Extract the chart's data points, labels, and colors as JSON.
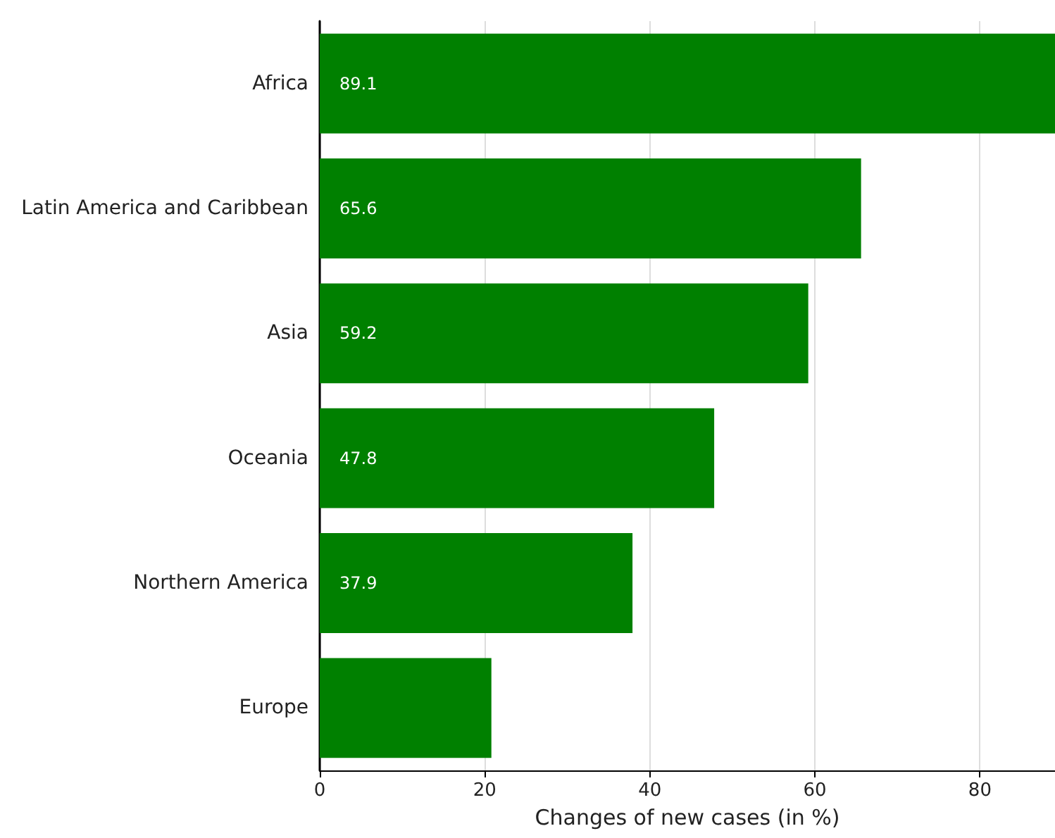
{
  "chart_data": {
    "type": "bar",
    "orientation": "horizontal",
    "xlabel": "Changes of new cases (in %)",
    "categories": [
      "Africa",
      "Latin America and Caribbean",
      "Asia",
      "Oceania",
      "Northern America",
      "Europe"
    ],
    "values": [
      89.1,
      65.6,
      59.2,
      47.8,
      37.9,
      20.8
    ],
    "value_labels": [
      "89.1",
      "65.6",
      "59.2",
      "47.8",
      "37.9",
      null
    ],
    "color": "#008000",
    "xlim": [
      0,
      89.1
    ],
    "xticks": [
      0,
      20,
      40,
      60,
      80
    ],
    "grid": "x"
  }
}
